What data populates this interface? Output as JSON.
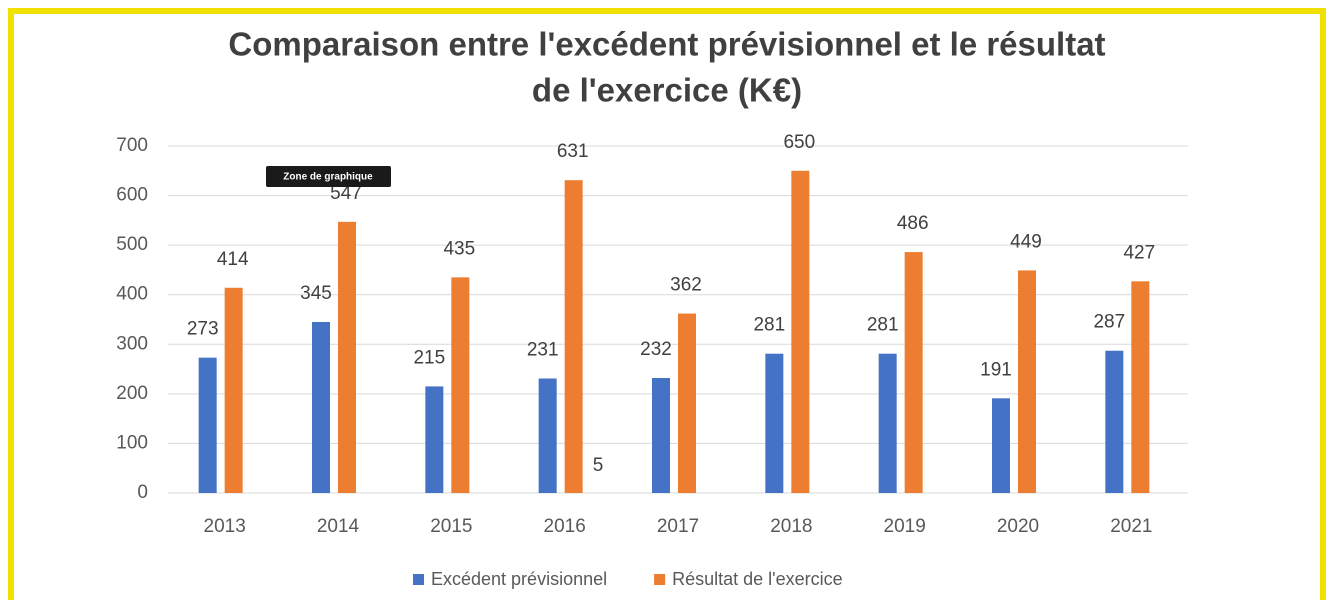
{
  "chart_data": {
    "type": "bar",
    "title": [
      "Comparaison entre l'excédent prévisionnel et le résultat",
      "de l'exercice (K€)"
    ],
    "categories": [
      "2013",
      "2014",
      "2015",
      "2016",
      "2017",
      "2018",
      "2019",
      "2020",
      "2021"
    ],
    "series": [
      {
        "name": "Excédent prévisionnel",
        "color": "#4472c4",
        "values": [
          273,
          345,
          215,
          231,
          232,
          281,
          281,
          191,
          287
        ]
      },
      {
        "name": "Résultat de l'exercice",
        "color": "#ed7d31",
        "values": [
          414,
          547,
          435,
          631,
          362,
          650,
          486,
          449,
          427
        ]
      }
    ],
    "ylim": [
      0,
      700
    ],
    "yticks": [
      0,
      100,
      200,
      300,
      400,
      500,
      600,
      700
    ],
    "grid": true,
    "legend": "bottom",
    "tooltip": "Zone de graphique",
    "annotations": [
      "5"
    ]
  }
}
